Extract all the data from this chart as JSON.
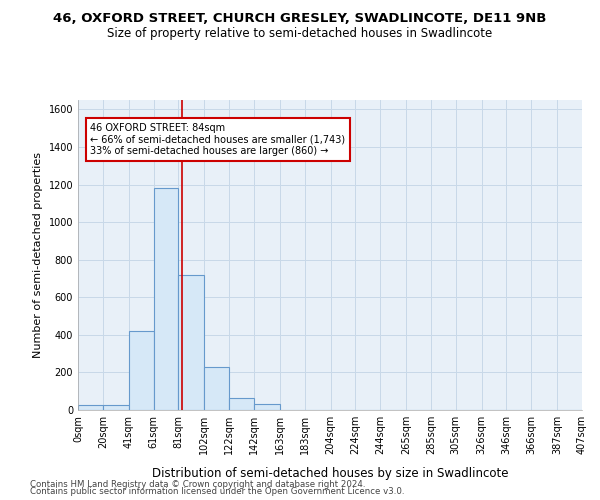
{
  "title": "46, OXFORD STREET, CHURCH GRESLEY, SWADLINCOTE, DE11 9NB",
  "subtitle": "Size of property relative to semi-detached houses in Swadlincote",
  "xlabel": "Distribution of semi-detached houses by size in Swadlincote",
  "ylabel": "Number of semi-detached properties",
  "footer1": "Contains HM Land Registry data © Crown copyright and database right 2024.",
  "footer2": "Contains public sector information licensed under the Open Government Licence v3.0.",
  "bin_edges": [
    0,
    20,
    41,
    61,
    81,
    102,
    122,
    142,
    163,
    183,
    204,
    224,
    244,
    265,
    285,
    305,
    326,
    346,
    366,
    387,
    407
  ],
  "bar_heights": [
    25,
    25,
    420,
    1180,
    720,
    230,
    65,
    30,
    0,
    0,
    0,
    0,
    0,
    0,
    0,
    0,
    0,
    0,
    0,
    0
  ],
  "bar_facecolor": "#d6e8f7",
  "bar_edgecolor": "#6699cc",
  "bar_linewidth": 0.8,
  "grid_color": "#c8d8e8",
  "bg_color": "#e8f0f8",
  "red_line_x": 84,
  "red_line_color": "#cc0000",
  "annotation_text": "46 OXFORD STREET: 84sqm\n← 66% of semi-detached houses are smaller (1,743)\n33% of semi-detached houses are larger (860) →",
  "annotation_box_color": "#cc0000",
  "annotation_fill": "white",
  "ylim": [
    0,
    1650
  ],
  "yticks": [
    0,
    200,
    400,
    600,
    800,
    1000,
    1200,
    1400,
    1600
  ],
  "title_fontsize": 9.5,
  "subtitle_fontsize": 8.5,
  "axis_label_fontsize": 8,
  "tick_fontsize": 7,
  "footer_fontsize": 6.2
}
